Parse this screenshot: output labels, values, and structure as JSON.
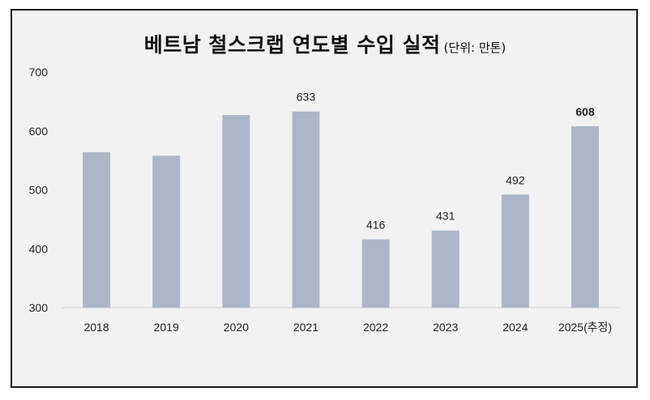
{
  "chart_data": {
    "type": "bar",
    "title": "베트남 철스크랩 연도별 수입 실적",
    "unit_note": "(단위: 만톤)",
    "categories": [
      "2018",
      "2019",
      "2020",
      "2021",
      "2022",
      "2023",
      "2024",
      "2025(추정)"
    ],
    "values": [
      564,
      558,
      627,
      633,
      416,
      431,
      492,
      608
    ],
    "data_labels": [
      "",
      "",
      "",
      "633",
      "416",
      "431",
      "492",
      "608"
    ],
    "bold_labels": [
      false,
      false,
      false,
      false,
      false,
      false,
      false,
      true
    ],
    "ylim": [
      300,
      700
    ],
    "yticks": [
      "300",
      "400",
      "500",
      "600",
      "700"
    ],
    "xlabel": "",
    "ylabel": "",
    "grid": false,
    "bar_color": "#adb6c8"
  }
}
